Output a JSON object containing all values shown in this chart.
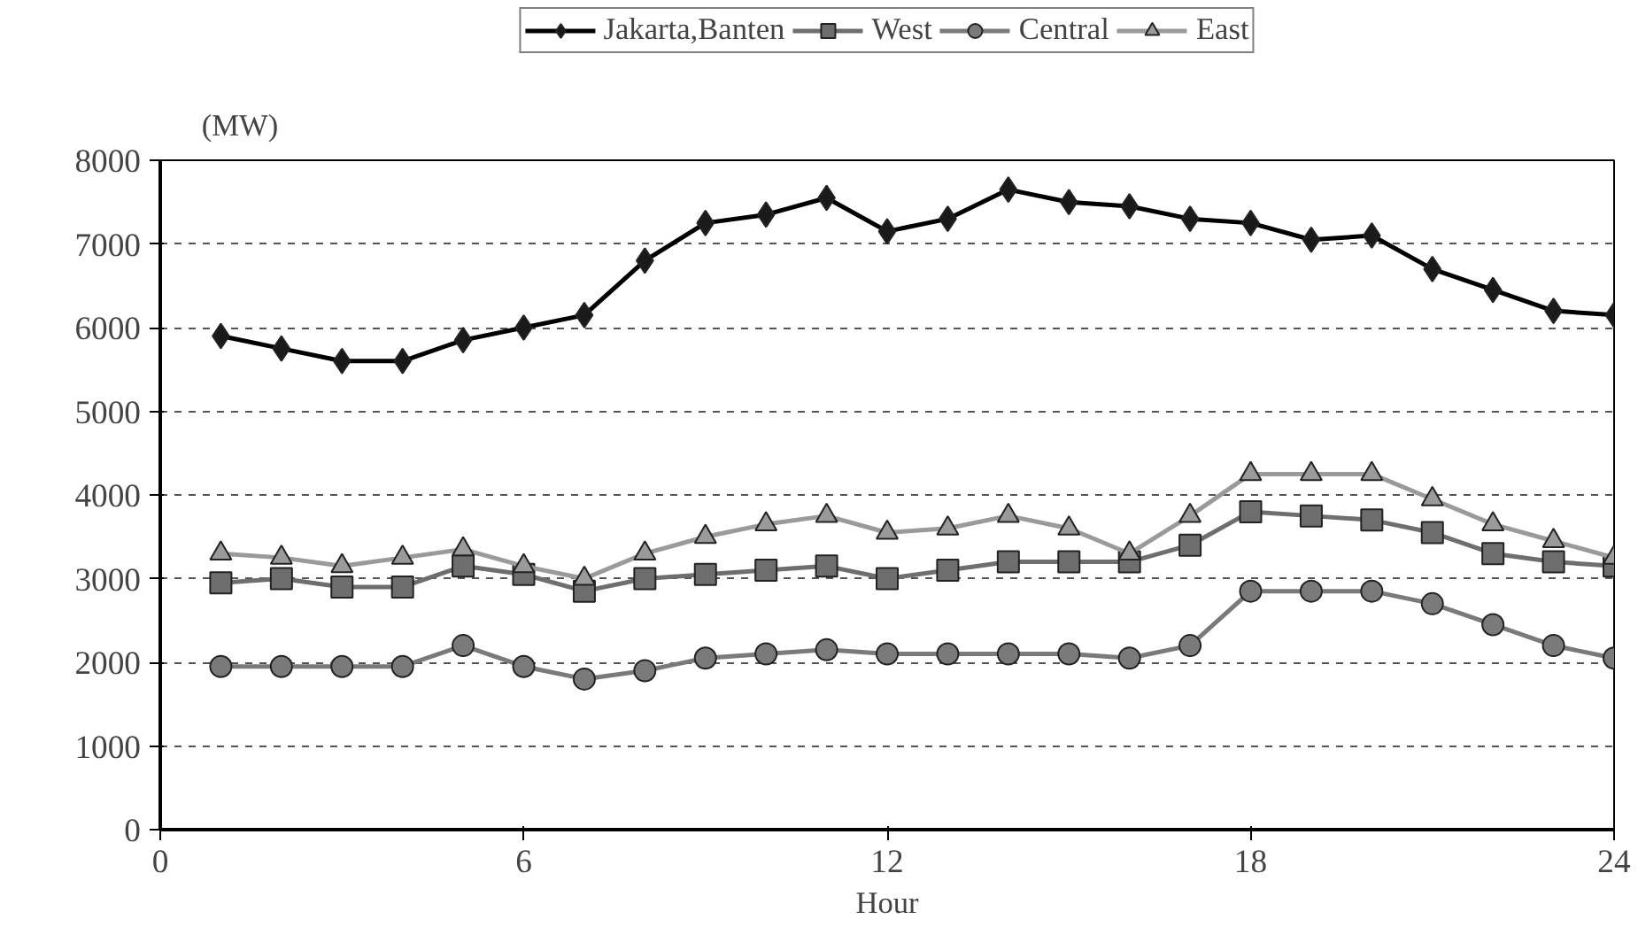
{
  "chart_data": {
    "type": "line",
    "xlabel": "Hour",
    "ylabel": "(MW)",
    "x": [
      1,
      2,
      3,
      4,
      5,
      6,
      7,
      8,
      9,
      10,
      11,
      12,
      13,
      14,
      15,
      16,
      17,
      18,
      19,
      20,
      21,
      22,
      23,
      24
    ],
    "series": [
      {
        "name": "Jakarta,Banten",
        "color": "#1a1a1a",
        "marker": "diamond",
        "values": [
          5900,
          5750,
          5600,
          5600,
          5850,
          6000,
          6150,
          6800,
          7250,
          7350,
          7550,
          7150,
          7300,
          7650,
          7500,
          7450,
          7300,
          7250,
          7050,
          7100,
          6700,
          6450,
          6200,
          6150
        ]
      },
      {
        "name": "West",
        "color": "#6e6e6e",
        "marker": "square",
        "values": [
          2950,
          3000,
          2900,
          2900,
          3150,
          3050,
          2850,
          3000,
          3050,
          3100,
          3150,
          3000,
          3100,
          3200,
          3200,
          3200,
          3400,
          3800,
          3750,
          3700,
          3550,
          3300,
          3200,
          3150
        ]
      },
      {
        "name": "Central",
        "color": "#7a7a7a",
        "marker": "circle",
        "values": [
          1950,
          1950,
          1950,
          1950,
          2200,
          1950,
          1800,
          1900,
          2050,
          2100,
          2150,
          2100,
          2100,
          2100,
          2100,
          2050,
          2200,
          2850,
          2850,
          2850,
          2700,
          2450,
          2200,
          2050
        ]
      },
      {
        "name": "East",
        "color": "#9a9a9a",
        "marker": "triangle",
        "values": [
          3300,
          3250,
          3150,
          3250,
          3350,
          3150,
          3000,
          3300,
          3500,
          3650,
          3750,
          3550,
          3600,
          3750,
          3600,
          3300,
          3750,
          4250,
          4250,
          4250,
          3950,
          3650,
          3450,
          3250
        ]
      }
    ],
    "xlim": [
      0,
      24
    ],
    "xticks": [
      0,
      6,
      12,
      18,
      24
    ],
    "ylim": [
      0,
      8000
    ],
    "yticks": [
      0,
      1000,
      2000,
      3000,
      4000,
      5000,
      6000,
      7000,
      8000
    ],
    "grid": "y",
    "legend": "top",
    "line_style": "solid"
  }
}
